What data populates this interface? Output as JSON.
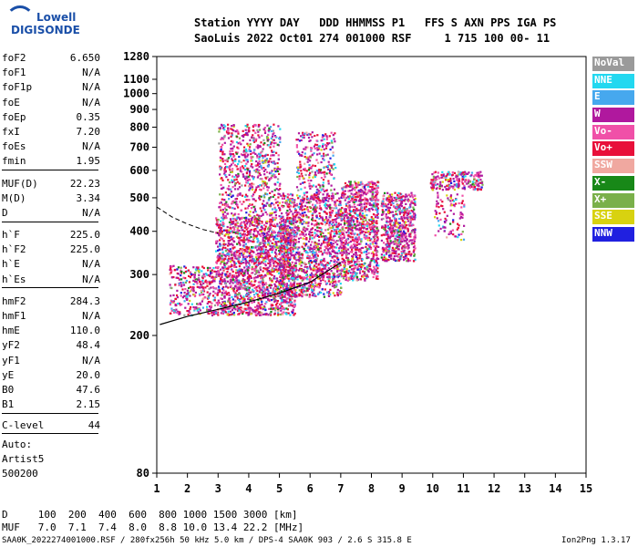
{
  "logo": {
    "top": "Lowell",
    "bottom": "DIGISONDE"
  },
  "header": {
    "labels": "Station YYYY DAY   DDD HHMMSS P1   FFS S AXN PPS IGA PS",
    "values": "SaoLuis 2022 Oct01 274 001000 RSF     1 715 100 00- 11"
  },
  "params": [
    {
      "k": "foF2",
      "v": "6.650"
    },
    {
      "k": "foF1",
      "v": "N/A"
    },
    {
      "k": "foF1p",
      "v": "N/A"
    },
    {
      "k": "foE",
      "v": "N/A"
    },
    {
      "k": "foEp",
      "v": "0.35"
    },
    {
      "k": "fxI",
      "v": "7.20"
    },
    {
      "k": "foEs",
      "v": "N/A"
    },
    {
      "k": "fmin",
      "v": "1.95"
    },
    {
      "k": "MUF(D)",
      "v": "22.23"
    },
    {
      "k": "M(D)",
      "v": "3.34"
    },
    {
      "k": "D",
      "v": "N/A"
    },
    {
      "k": "h`F",
      "v": "225.0"
    },
    {
      "k": "h`F2",
      "v": "225.0"
    },
    {
      "k": "h`E",
      "v": "N/A"
    },
    {
      "k": "h`Es",
      "v": "N/A"
    },
    {
      "k": "hmF2",
      "v": "284.3"
    },
    {
      "k": "hmF1",
      "v": "N/A"
    },
    {
      "k": "hmE",
      "v": "110.0"
    },
    {
      "k": "yF2",
      "v": "48.4"
    },
    {
      "k": "yF1",
      "v": "N/A"
    },
    {
      "k": "yE",
      "v": "20.0"
    },
    {
      "k": "B0",
      "v": "47.6"
    },
    {
      "k": "B1",
      "v": "2.15"
    },
    {
      "k": "C-level",
      "v": "44"
    }
  ],
  "autoscale": {
    "line1": "Auto:",
    "line2": "Artist5",
    "line3": "500200"
  },
  "legend": [
    {
      "label": "NoVal",
      "color": "#9a9a9a"
    },
    {
      "label": "NNE",
      "color": "#22d8f0"
    },
    {
      "label": "E",
      "color": "#46a8ee"
    },
    {
      "label": "W",
      "color": "#b0189e"
    },
    {
      "label": "Vo-",
      "color": "#f050a8"
    },
    {
      "label": "Vo+",
      "color": "#e8103a"
    },
    {
      "label": "SSW",
      "color": "#f0a8a0"
    },
    {
      "label": "X-",
      "color": "#188818"
    },
    {
      "label": "X+",
      "color": "#7ab04a"
    },
    {
      "label": "SSE",
      "color": "#d8d210"
    },
    {
      "label": "NNW",
      "color": "#2020e0"
    }
  ],
  "chart_data": {
    "type": "scatter",
    "title": "",
    "xlabel": "",
    "ylabel": "",
    "xlim": [
      1,
      15
    ],
    "ylim": [
      80,
      1280
    ],
    "yscale": "log",
    "x_ticks": [
      "1",
      "2",
      "3",
      "4",
      "5",
      "6",
      "7",
      "8",
      "9",
      "10",
      "11",
      "12",
      "13",
      "14",
      "15"
    ],
    "y_ticks": [
      "80",
      "200",
      "300",
      "400",
      "500",
      "600",
      "700",
      "800",
      "900",
      "1000",
      "1100",
      "1280"
    ],
    "clusters": [
      {
        "x": [
          1.4,
          2.9
        ],
        "y": [
          230,
          320
        ],
        "n": 320
      },
      {
        "x": [
          2.9,
          5.5
        ],
        "y": [
          230,
          440
        ],
        "n": 1800
      },
      {
        "x": [
          3.0,
          5.0
        ],
        "y": [
          440,
          820
        ],
        "n": 700
      },
      {
        "x": [
          5.0,
          7.0
        ],
        "y": [
          260,
          520
        ],
        "n": 1300
      },
      {
        "x": [
          5.5,
          6.8
        ],
        "y": [
          520,
          780
        ],
        "n": 240
      },
      {
        "x": [
          7.0,
          8.2
        ],
        "y": [
          290,
          560
        ],
        "n": 900
      },
      {
        "x": [
          8.3,
          9.4
        ],
        "y": [
          330,
          520
        ],
        "n": 600
      },
      {
        "x": [
          9.9,
          11.6
        ],
        "y": [
          530,
          600
        ],
        "n": 220
      },
      {
        "x": [
          10.0,
          11.0
        ],
        "y": [
          380,
          520
        ],
        "n": 100
      }
    ],
    "trace_x": [
      1.1,
      2.0,
      3.0,
      4.0,
      5.0,
      6.0,
      7.0
    ],
    "trace_y": [
      215,
      227,
      238,
      250,
      265,
      285,
      325
    ],
    "curve_x": [
      1.0,
      1.5,
      2.0,
      2.5,
      3.0
    ],
    "curve_y": [
      470,
      440,
      420,
      405,
      395
    ]
  },
  "bottom": {
    "d_row": "D     100  200  400  600  800 1000 1500 3000 [km]",
    "muf_row": "MUF   7.0  7.1  7.4  8.0  8.8 10.0 13.4 22.2 [MHz]"
  },
  "footer": {
    "left": "SAA0K_2022274001000.RSF / 280fx256h 50 kHz 5.0 km / DPS-4 SAA0K 903 / 2.6 S 315.8 E",
    "right": "Ion2Png 1.3.17"
  }
}
